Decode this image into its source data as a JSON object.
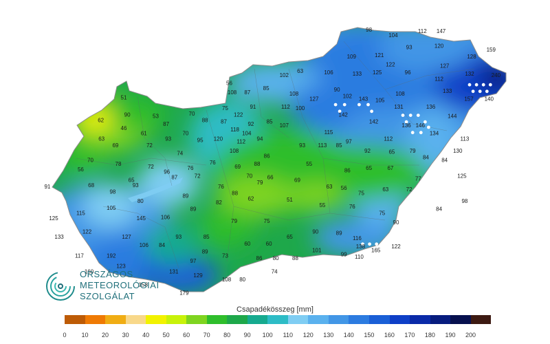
{
  "map": {
    "stations": [
      {
        "v": "98",
        "lon": 20.41,
        "lat": 48.56
      },
      {
        "v": "104",
        "lon": 20.76,
        "lat": 48.52
      },
      {
        "v": "112",
        "lon": 21.18,
        "lat": 48.55
      },
      {
        "v": "147",
        "lon": 21.45,
        "lat": 48.55
      },
      {
        "v": "93",
        "lon": 20.99,
        "lat": 48.43
      },
      {
        "v": "120",
        "lon": 21.42,
        "lat": 48.44
      },
      {
        "v": "159",
        "lon": 22.17,
        "lat": 48.41
      },
      {
        "v": "109",
        "lon": 20.16,
        "lat": 48.36
      },
      {
        "v": "121",
        "lon": 20.56,
        "lat": 48.37
      },
      {
        "v": "128",
        "lon": 21.89,
        "lat": 48.36
      },
      {
        "v": "122",
        "lon": 20.72,
        "lat": 48.3
      },
      {
        "v": "127",
        "lon": 21.5,
        "lat": 48.29
      },
      {
        "v": "63",
        "lon": 19.42,
        "lat": 48.25
      },
      {
        "v": "106",
        "lon": 19.83,
        "lat": 48.24
      },
      {
        "v": "133",
        "lon": 20.24,
        "lat": 48.23
      },
      {
        "v": "125",
        "lon": 20.53,
        "lat": 48.24
      },
      {
        "v": "96",
        "lon": 20.97,
        "lat": 48.24
      },
      {
        "v": "132",
        "lon": 21.86,
        "lat": 48.23
      },
      {
        "v": "240",
        "lon": 22.24,
        "lat": 48.22
      },
      {
        "v": "102",
        "lon": 19.19,
        "lat": 48.22
      },
      {
        "v": "112",
        "lon": 21.42,
        "lat": 48.19
      },
      {
        "v": "56",
        "lon": 18.4,
        "lat": 48.16
      },
      {
        "v": "108",
        "lon": 18.44,
        "lat": 48.09
      },
      {
        "v": "87",
        "lon": 18.66,
        "lat": 48.09
      },
      {
        "v": "85",
        "lon": 18.93,
        "lat": 48.12
      },
      {
        "v": "108",
        "lon": 19.33,
        "lat": 48.08
      },
      {
        "v": "90",
        "lon": 19.95,
        "lat": 48.11
      },
      {
        "v": "133",
        "lon": 21.54,
        "lat": 48.1
      },
      {
        "v": "102",
        "lon": 20.1,
        "lat": 48.06
      },
      {
        "v": "143",
        "lon": 20.33,
        "lat": 48.04
      },
      {
        "v": "105",
        "lon": 20.57,
        "lat": 48.03
      },
      {
        "v": "108",
        "lon": 20.86,
        "lat": 48.08
      },
      {
        "v": "127",
        "lon": 19.62,
        "lat": 48.04
      },
      {
        "v": "157",
        "lon": 21.85,
        "lat": 48.04
      },
      {
        "v": "140",
        "lon": 22.14,
        "lat": 48.04
      },
      {
        "v": "51",
        "lon": 16.88,
        "lat": 48.05
      },
      {
        "v": "91",
        "lon": 18.74,
        "lat": 47.98
      },
      {
        "v": "112",
        "lon": 19.21,
        "lat": 47.98
      },
      {
        "v": "100",
        "lon": 19.42,
        "lat": 47.97
      },
      {
        "v": "131",
        "lon": 20.84,
        "lat": 47.98
      },
      {
        "v": "136",
        "lon": 21.3,
        "lat": 47.98
      },
      {
        "v": "70",
        "lon": 17.86,
        "lat": 47.93
      },
      {
        "v": "75",
        "lon": 18.34,
        "lat": 47.97
      },
      {
        "v": "122",
        "lon": 18.53,
        "lat": 47.92
      },
      {
        "v": "142",
        "lon": 20.04,
        "lat": 47.92
      },
      {
        "v": "144",
        "lon": 21.61,
        "lat": 47.91
      },
      {
        "v": "90",
        "lon": 16.93,
        "lat": 47.92
      },
      {
        "v": "53",
        "lon": 17.34,
        "lat": 47.91
      },
      {
        "v": "88",
        "lon": 18.05,
        "lat": 47.88
      },
      {
        "v": "87",
        "lon": 18.32,
        "lat": 47.87
      },
      {
        "v": "85",
        "lon": 18.98,
        "lat": 47.87
      },
      {
        "v": "142",
        "lon": 20.48,
        "lat": 47.87
      },
      {
        "v": "62",
        "lon": 16.55,
        "lat": 47.88
      },
      {
        "v": "87",
        "lon": 17.49,
        "lat": 47.85
      },
      {
        "v": "92",
        "lon": 18.71,
        "lat": 47.85
      },
      {
        "v": "107",
        "lon": 19.19,
        "lat": 47.84
      },
      {
        "v": "136",
        "lon": 20.95,
        "lat": 47.84
      },
      {
        "v": "146",
        "lon": 21.15,
        "lat": 47.84
      },
      {
        "v": "46",
        "lon": 16.88,
        "lat": 47.82
      },
      {
        "v": "118",
        "lon": 18.48,
        "lat": 47.81
      },
      {
        "v": "115",
        "lon": 19.83,
        "lat": 47.79
      },
      {
        "v": "61",
        "lon": 17.17,
        "lat": 47.78
      },
      {
        "v": "70",
        "lon": 17.77,
        "lat": 47.78
      },
      {
        "v": "104",
        "lon": 18.65,
        "lat": 47.78
      },
      {
        "v": "134",
        "lon": 21.35,
        "lat": 47.78
      },
      {
        "v": "120",
        "lon": 18.24,
        "lat": 47.74
      },
      {
        "v": "94",
        "lon": 18.84,
        "lat": 47.74
      },
      {
        "v": "112",
        "lon": 20.69,
        "lat": 47.74
      },
      {
        "v": "113",
        "lon": 21.79,
        "lat": 47.74
      },
      {
        "v": "63",
        "lon": 16.56,
        "lat": 47.74
      },
      {
        "v": "93",
        "lon": 17.52,
        "lat": 47.74
      },
      {
        "v": "95",
        "lon": 17.98,
        "lat": 47.73
      },
      {
        "v": "112",
        "lon": 18.57,
        "lat": 47.72
      },
      {
        "v": "97",
        "lon": 20.12,
        "lat": 47.72
      },
      {
        "v": "69",
        "lon": 16.76,
        "lat": 47.69
      },
      {
        "v": "72",
        "lon": 17.25,
        "lat": 47.69
      },
      {
        "v": "93",
        "lon": 19.45,
        "lat": 47.69
      },
      {
        "v": "113",
        "lon": 19.74,
        "lat": 47.69
      },
      {
        "v": "85",
        "lon": 19.98,
        "lat": 47.69
      },
      {
        "v": "108",
        "lon": 18.47,
        "lat": 47.65
      },
      {
        "v": "92",
        "lon": 20.39,
        "lat": 47.65
      },
      {
        "v": "65",
        "lon": 20.74,
        "lat": 47.64
      },
      {
        "v": "79",
        "lon": 21.04,
        "lat": 47.65
      },
      {
        "v": "130",
        "lon": 21.69,
        "lat": 47.65
      },
      {
        "v": "74",
        "lon": 17.69,
        "lat": 47.63
      },
      {
        "v": "86",
        "lon": 18.94,
        "lat": 47.61
      },
      {
        "v": "84",
        "lon": 21.23,
        "lat": 47.6
      },
      {
        "v": "84",
        "lon": 21.5,
        "lat": 47.58
      },
      {
        "v": "70",
        "lon": 16.4,
        "lat": 47.58
      },
      {
        "v": "76",
        "lon": 18.16,
        "lat": 47.56
      },
      {
        "v": "88",
        "lon": 18.8,
        "lat": 47.55
      },
      {
        "v": "55",
        "lon": 19.55,
        "lat": 47.55
      },
      {
        "v": "78",
        "lon": 16.8,
        "lat": 47.55
      },
      {
        "v": "72",
        "lon": 17.27,
        "lat": 47.53
      },
      {
        "v": "69",
        "lon": 18.52,
        "lat": 47.53
      },
      {
        "v": "65",
        "lon": 20.41,
        "lat": 47.52
      },
      {
        "v": "67",
        "lon": 20.72,
        "lat": 47.52
      },
      {
        "v": "56",
        "lon": 16.26,
        "lat": 47.51
      },
      {
        "v": "96",
        "lon": 17.5,
        "lat": 47.49
      },
      {
        "v": "76",
        "lon": 17.84,
        "lat": 47.52
      },
      {
        "v": "86",
        "lon": 20.1,
        "lat": 47.5
      },
      {
        "v": "72",
        "lon": 17.94,
        "lat": 47.46
      },
      {
        "v": "70",
        "lon": 18.69,
        "lat": 47.46
      },
      {
        "v": "125",
        "lon": 21.75,
        "lat": 47.46
      },
      {
        "v": "87",
        "lon": 17.61,
        "lat": 47.45
      },
      {
        "v": "66",
        "lon": 18.99,
        "lat": 47.45
      },
      {
        "v": "77",
        "lon": 21.12,
        "lat": 47.44
      },
      {
        "v": "65",
        "lon": 16.99,
        "lat": 47.43
      },
      {
        "v": "69",
        "lon": 19.38,
        "lat": 47.43
      },
      {
        "v": "79",
        "lon": 18.84,
        "lat": 47.41
      },
      {
        "v": "68",
        "lon": 16.41,
        "lat": 47.39
      },
      {
        "v": "93",
        "lon": 17.05,
        "lat": 47.39
      },
      {
        "v": "76",
        "lon": 18.28,
        "lat": 47.38
      },
      {
        "v": "63",
        "lon": 19.84,
        "lat": 47.38
      },
      {
        "v": "56",
        "lon": 20.05,
        "lat": 47.37
      },
      {
        "v": "91",
        "lon": 15.78,
        "lat": 47.38
      },
      {
        "v": "63",
        "lon": 20.65,
        "lat": 47.36
      },
      {
        "v": "72",
        "lon": 20.99,
        "lat": 47.36
      },
      {
        "v": "98",
        "lon": 16.72,
        "lat": 47.34
      },
      {
        "v": "88",
        "lon": 18.48,
        "lat": 47.33
      },
      {
        "v": "75",
        "lon": 20.3,
        "lat": 47.33
      },
      {
        "v": "89",
        "lon": 17.77,
        "lat": 47.31
      },
      {
        "v": "62",
        "lon": 18.71,
        "lat": 47.29
      },
      {
        "v": "51",
        "lon": 19.27,
        "lat": 47.28
      },
      {
        "v": "80",
        "lon": 17.12,
        "lat": 47.27
      },
      {
        "v": "98",
        "lon": 21.79,
        "lat": 47.27
      },
      {
        "v": "82",
        "lon": 18.25,
        "lat": 47.26
      },
      {
        "v": "55",
        "lon": 19.74,
        "lat": 47.24
      },
      {
        "v": "76",
        "lon": 20.17,
        "lat": 47.23
      },
      {
        "v": "105",
        "lon": 16.7,
        "lat": 47.22
      },
      {
        "v": "89",
        "lon": 17.88,
        "lat": 47.21
      },
      {
        "v": "84",
        "lon": 21.42,
        "lat": 47.21
      },
      {
        "v": "115",
        "lon": 16.26,
        "lat": 47.18
      },
      {
        "v": "75",
        "lon": 20.6,
        "lat": 47.18
      },
      {
        "v": "145",
        "lon": 17.13,
        "lat": 47.14
      },
      {
        "v": "106",
        "lon": 17.48,
        "lat": 47.15
      },
      {
        "v": "125",
        "lon": 15.87,
        "lat": 47.14
      },
      {
        "v": "79",
        "lon": 18.47,
        "lat": 47.12
      },
      {
        "v": "75",
        "lon": 18.94,
        "lat": 47.12
      },
      {
        "v": "90",
        "lon": 20.8,
        "lat": 47.11
      },
      {
        "v": "122",
        "lon": 16.35,
        "lat": 47.04
      },
      {
        "v": "90",
        "lon": 19.64,
        "lat": 47.04
      },
      {
        "v": "89",
        "lon": 19.98,
        "lat": 47.03
      },
      {
        "v": "133",
        "lon": 15.95,
        "lat": 47.0
      },
      {
        "v": "127",
        "lon": 16.92,
        "lat": 47.0
      },
      {
        "v": "93",
        "lon": 17.67,
        "lat": 47.0
      },
      {
        "v": "85",
        "lon": 18.07,
        "lat": 47.0
      },
      {
        "v": "65",
        "lon": 19.27,
        "lat": 47.0
      },
      {
        "v": "116",
        "lon": 20.24,
        "lat": 46.99
      },
      {
        "v": "60",
        "lon": 18.66,
        "lat": 46.95
      },
      {
        "v": "60",
        "lon": 18.97,
        "lat": 46.95
      },
      {
        "v": "106",
        "lon": 17.17,
        "lat": 46.94
      },
      {
        "v": "84",
        "lon": 17.43,
        "lat": 46.94
      },
      {
        "v": "138",
        "lon": 20.29,
        "lat": 46.93
      },
      {
        "v": "122",
        "lon": 20.8,
        "lat": 46.93
      },
      {
        "v": "165",
        "lon": 20.51,
        "lat": 46.9
      },
      {
        "v": "101",
        "lon": 19.66,
        "lat": 46.9
      },
      {
        "v": "89",
        "lon": 18.05,
        "lat": 46.89
      },
      {
        "v": "99",
        "lon": 20.05,
        "lat": 46.87
      },
      {
        "v": "117",
        "lon": 16.24,
        "lat": 46.86
      },
      {
        "v": "192",
        "lon": 16.7,
        "lat": 46.86
      },
      {
        "v": "73",
        "lon": 18.34,
        "lat": 46.86
      },
      {
        "v": "110",
        "lon": 20.27,
        "lat": 46.85
      },
      {
        "v": "86",
        "lon": 18.83,
        "lat": 46.84
      },
      {
        "v": "80",
        "lon": 19.07,
        "lat": 46.84
      },
      {
        "v": "88",
        "lon": 19.35,
        "lat": 46.84
      },
      {
        "v": "97",
        "lon": 17.88,
        "lat": 46.82
      },
      {
        "v": "123",
        "lon": 16.84,
        "lat": 46.78
      },
      {
        "v": "160",
        "lon": 16.38,
        "lat": 46.74
      },
      {
        "v": "131",
        "lon": 17.6,
        "lat": 46.74
      },
      {
        "v": "74",
        "lon": 19.05,
        "lat": 46.74
      },
      {
        "v": "129",
        "lon": 17.95,
        "lat": 46.71
      },
      {
        "v": "108",
        "lon": 18.36,
        "lat": 46.68
      },
      {
        "v": "80",
        "lon": 18.59,
        "lat": 46.68
      },
      {
        "v": "158",
        "lon": 17.16,
        "lat": 46.64
      },
      {
        "v": "179",
        "lon": 17.75,
        "lat": 46.58
      }
    ],
    "snow_markers": [
      {
        "lon": 21.86,
        "lat": 48.15
      },
      {
        "lon": 21.96,
        "lat": 48.15
      },
      {
        "lon": 22.06,
        "lat": 48.15
      },
      {
        "lon": 22.16,
        "lat": 48.15
      },
      {
        "lon": 21.91,
        "lat": 48.1
      },
      {
        "lon": 22.01,
        "lat": 48.1
      },
      {
        "lon": 22.11,
        "lat": 48.1
      },
      {
        "lon": 19.93,
        "lat": 48.0
      },
      {
        "lon": 20.06,
        "lat": 48.0
      },
      {
        "lon": 20.27,
        "lat": 48.0
      },
      {
        "lon": 20.4,
        "lat": 48.0
      },
      {
        "lon": 19.99,
        "lat": 47.95
      },
      {
        "lon": 20.45,
        "lat": 47.95
      },
      {
        "lon": 20.9,
        "lat": 47.92
      },
      {
        "lon": 21.01,
        "lat": 47.92
      },
      {
        "lon": 21.12,
        "lat": 47.92
      },
      {
        "lon": 20.95,
        "lat": 47.87
      },
      {
        "lon": 21.22,
        "lat": 47.87
      },
      {
        "lon": 21.27,
        "lat": 47.83
      },
      {
        "lon": 21.04,
        "lat": 47.79
      },
      {
        "lon": 21.16,
        "lat": 47.79
      },
      {
        "lon": 20.32,
        "lat": 46.95
      },
      {
        "lon": 20.42,
        "lat": 46.95
      },
      {
        "lon": 20.52,
        "lat": 46.95
      },
      {
        "lon": 20.62,
        "lat": 46.95
      },
      {
        "lon": 20.72,
        "lat": 46.95
      },
      {
        "lon": 20.37,
        "lat": 46.9
      },
      {
        "lon": 20.57,
        "lat": 46.9
      },
      {
        "lon": 20.67,
        "lat": 46.9
      },
      {
        "lon": 20.77,
        "lat": 46.9
      }
    ]
  },
  "logo": {
    "line1": "ORSZÁGOS",
    "line2": "METEOROLÓGIAI",
    "line3": "SZOLGÁLAT"
  },
  "legend": {
    "title": "Csapadékösszeg [mm]",
    "colors": [
      "#bd5b06",
      "#ef7a04",
      "#f0ad14",
      "#f8d88a",
      "#f2f200",
      "#c8f20a",
      "#7fd420",
      "#2fbe2c",
      "#1ea84a",
      "#16aa8f",
      "#2dbcc6",
      "#7fcdf3",
      "#5ab1ee",
      "#4296e6",
      "#2c7be0",
      "#1a5fd6",
      "#0e3fc7",
      "#0a2aa8",
      "#071c7e",
      "#07104e",
      "#3d1a12"
    ],
    "ticks": [
      "0",
      "10",
      "20",
      "30",
      "40",
      "50",
      "60",
      "70",
      "80",
      "90",
      "100",
      "110",
      "120",
      "130",
      "140",
      "150",
      "160",
      "170",
      "180",
      "190",
      "200"
    ]
  }
}
